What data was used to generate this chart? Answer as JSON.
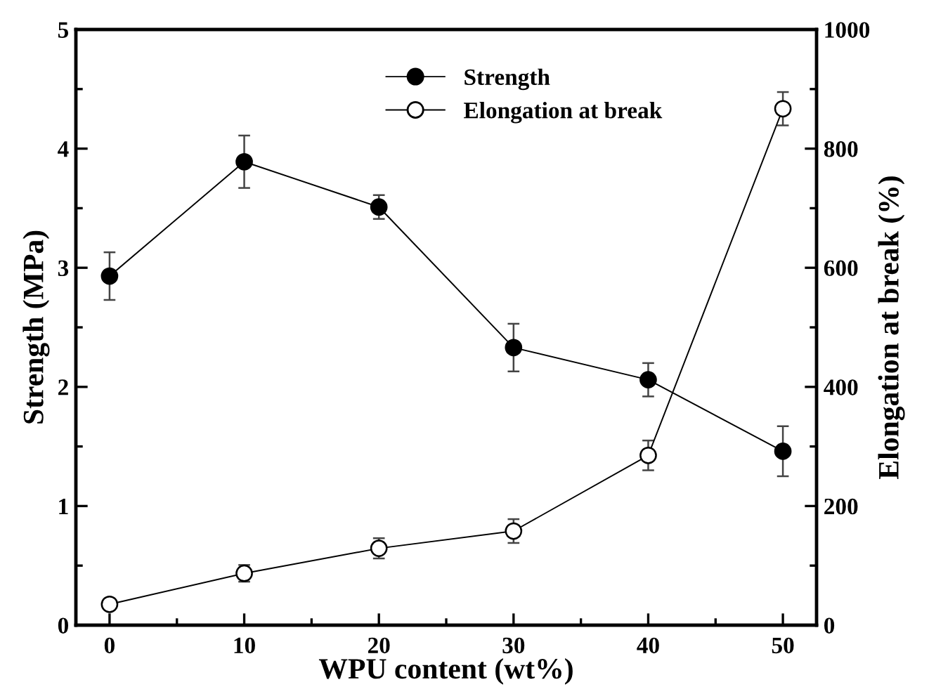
{
  "chart_data": {
    "type": "line",
    "xlabel": "WPU content (wt%)",
    "ylabel": "Strength (MPa)",
    "y2label": "Elongation at break (%)",
    "x": [
      0,
      10,
      20,
      30,
      40,
      50
    ],
    "series": [
      {
        "name": "Strength",
        "color": "#000000",
        "values": [
          2.93,
          3.89,
          3.51,
          2.33,
          2.06,
          1.46
        ],
        "errors": [
          0.2,
          0.22,
          0.1,
          0.2,
          0.14,
          0.21
        ],
        "marker": "circle"
      },
      {
        "name": "Elongation at break",
        "color": "#000000",
        "values": [
          35,
          87,
          129,
          158,
          285,
          867
        ],
        "errors": [
          8,
          14,
          17,
          20,
          25,
          28
        ],
        "marker": "circle",
        "axis": "y2"
      }
    ],
    "xlim": [
      -2.5,
      52.5
    ],
    "xticks": [
      0,
      10,
      20,
      30,
      40,
      50
    ],
    "ylim": [
      0,
      5
    ],
    "yticks": [
      0,
      1,
      2,
      3,
      4,
      5
    ],
    "y2lim": [
      0,
      1000
    ],
    "y2ticks": [
      0,
      200,
      400,
      600,
      800,
      1000
    ],
    "grid": false,
    "legend": "top right",
    "line_style": "solid"
  }
}
